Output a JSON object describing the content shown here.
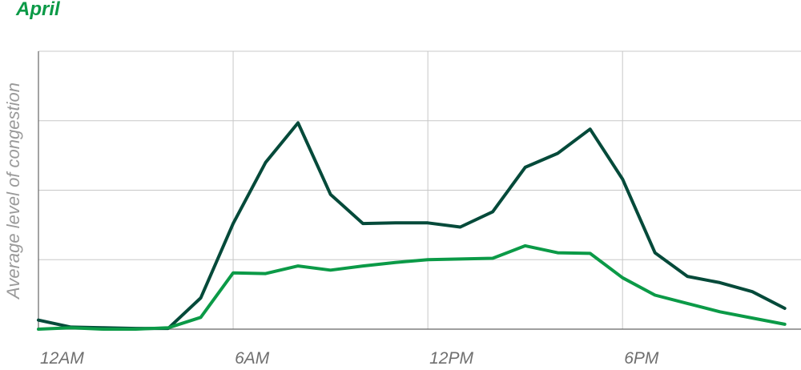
{
  "chart_data": {
    "type": "line",
    "title": "April",
    "xlabel": "",
    "ylabel": "Average level of congestion",
    "x": [
      0,
      1,
      2,
      3,
      4,
      5,
      6,
      7,
      8,
      9,
      10,
      11,
      12,
      13,
      14,
      15,
      16,
      17,
      18,
      19,
      20,
      21,
      22,
      23
    ],
    "x_tick_labels": [
      {
        "x": 0,
        "label": "12AM"
      },
      {
        "x": 6,
        "label": "6AM"
      },
      {
        "x": 12,
        "label": "12PM"
      },
      {
        "x": 18,
        "label": "6PM"
      }
    ],
    "xlim": [
      0,
      23.5
    ],
    "ylim": [
      0,
      4
    ],
    "y_grid_lines": [
      1,
      2,
      3,
      4
    ],
    "grid": true,
    "series": [
      {
        "color": "#054a3a",
        "values": [
          0.13,
          0.03,
          0.02,
          0.01,
          0.01,
          0.45,
          1.52,
          2.4,
          2.97,
          1.94,
          1.52,
          1.53,
          1.53,
          1.47,
          1.69,
          2.33,
          2.53,
          2.88,
          2.16,
          1.1,
          0.76,
          0.67,
          0.54,
          0.3
        ]
      },
      {
        "color": "#0b9a47",
        "values": [
          0.0,
          0.02,
          0.0,
          0.0,
          0.02,
          0.17,
          0.81,
          0.8,
          0.91,
          0.85,
          0.91,
          0.96,
          1.0,
          1.01,
          1.02,
          1.2,
          1.1,
          1.09,
          0.74,
          0.49,
          0.37,
          0.25,
          0.16,
          0.07
        ]
      }
    ]
  }
}
